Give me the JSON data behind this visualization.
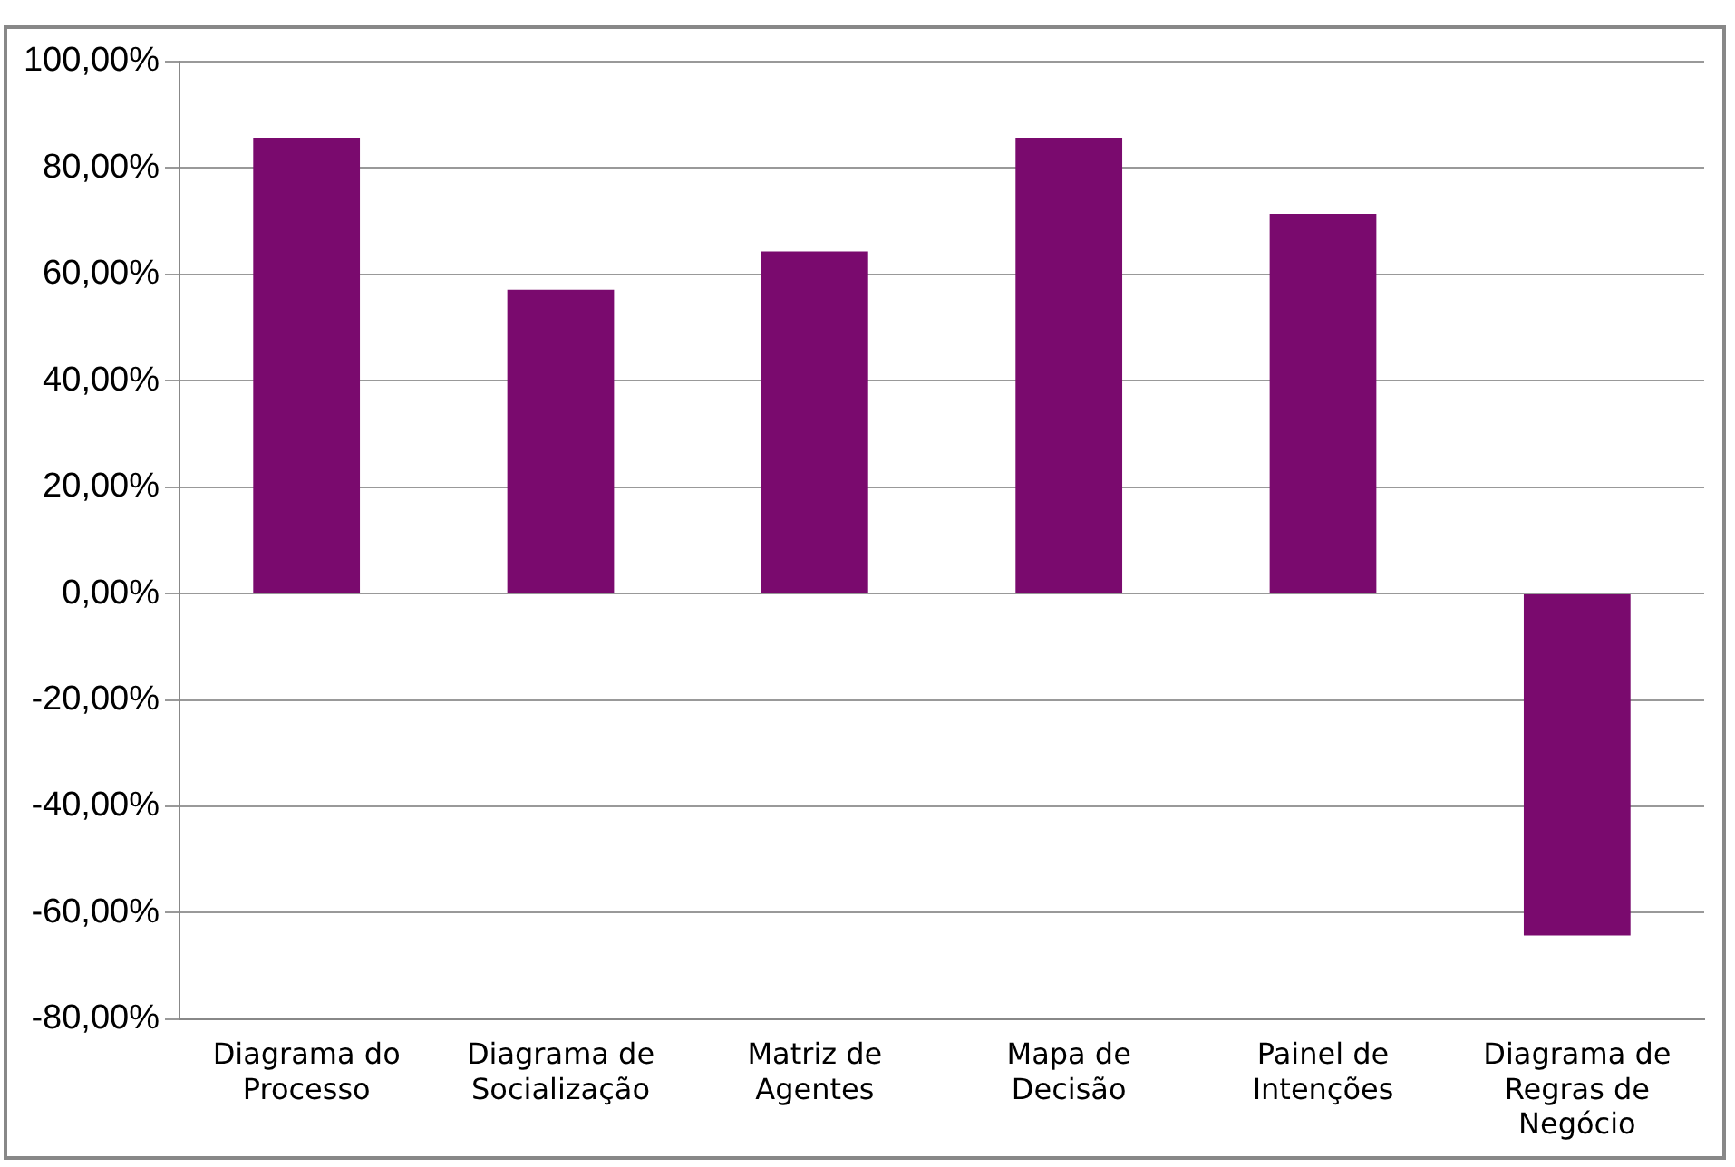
{
  "chart_data": {
    "type": "bar",
    "categories": [
      "Diagrama do Processo",
      "Diagrama de Socialização",
      "Matriz de Agentes",
      "Mapa de Decisão",
      "Painel de Intenções",
      "Diagrama de Regras de Negócio"
    ],
    "values": [
      85.7,
      57.1,
      64.3,
      85.7,
      71.4,
      -64.3
    ],
    "color": "#7a0a6e",
    "ylim": [
      -80,
      100
    ],
    "yticks": [
      {
        "value": -80,
        "label": "-80,00%"
      },
      {
        "value": -60,
        "label": "-60,00%"
      },
      {
        "value": -40,
        "label": "-40,00%"
      },
      {
        "value": -20,
        "label": "-20,00%"
      },
      {
        "value": 0,
        "label": "0,00%"
      },
      {
        "value": 20,
        "label": "20,00%"
      },
      {
        "value": 40,
        "label": "40,00%"
      },
      {
        "value": 60,
        "label": "60,00%"
      },
      {
        "value": 80,
        "label": "80,00%"
      },
      {
        "value": 100,
        "label": "100,00%"
      }
    ],
    "grid": "y"
  }
}
